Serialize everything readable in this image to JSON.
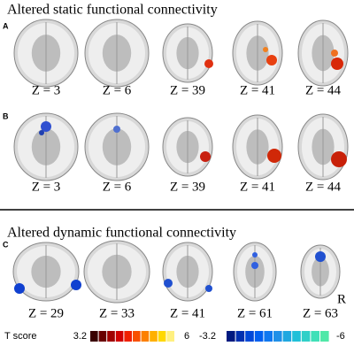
{
  "sections": [
    {
      "title": "Altered static functional connectivity",
      "panels": [
        {
          "label": "A",
          "slices": [
            "Z = 3",
            "Z = 6",
            "Z = 39",
            "Z = 41",
            "Z = 44"
          ]
        },
        {
          "label": "B",
          "slices": [
            "Z = 3",
            "Z = 6",
            "Z = 39",
            "Z = 41",
            "Z = 44"
          ]
        }
      ]
    },
    {
      "title": "Altered dynamic functional connectivity",
      "panels": [
        {
          "label": "C",
          "slices": [
            "Z = 29",
            "Z = 33",
            "Z = 41",
            "Z = 61",
            "Z = 63"
          ]
        }
      ]
    }
  ],
  "orientation_label": "R",
  "colorbar": {
    "title": "T score",
    "positive": {
      "min": "3.2",
      "max": "6"
    },
    "negative": {
      "min": "-3.2",
      "max": "-6"
    }
  }
}
